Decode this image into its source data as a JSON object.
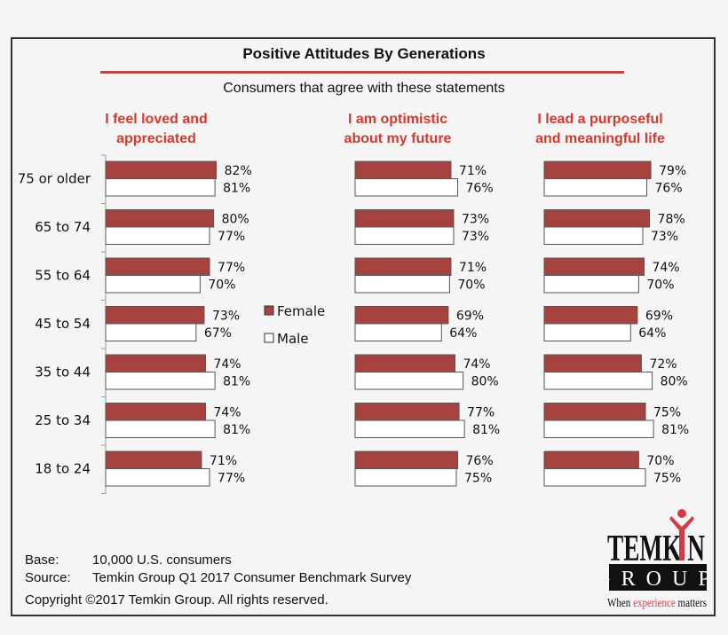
{
  "chart_data": {
    "type": "bar",
    "orientation": "horizontal",
    "title": "Positive Attitudes By Generations",
    "subtitle": "Consumers that agree with these statements",
    "categories": [
      "75 or older",
      "65 to 74",
      "55 to 64",
      "45 to 54",
      "35 to 44",
      "25 to 34",
      "18 to 24"
    ],
    "legend": {
      "position": "center",
      "entries": [
        "Female",
        "Male"
      ]
    },
    "colors": {
      "Female": "#a6433f",
      "Male": "#ffffff",
      "accent": "#d13b2f"
    },
    "xlim": [
      0,
      100
    ],
    "panels": [
      {
        "title": "I feel loved and appreciated",
        "title_lines": [
          "I feel loved and",
          "appreciated"
        ],
        "series": [
          {
            "name": "Female",
            "values": [
              82,
              80,
              77,
              73,
              74,
              74,
              71
            ]
          },
          {
            "name": "Male",
            "values": [
              81,
              77,
              70,
              67,
              81,
              81,
              77
            ]
          }
        ]
      },
      {
        "title": "I am optimistic about my future",
        "title_lines": [
          "I am optimistic",
          "about my future"
        ],
        "series": [
          {
            "name": "Female",
            "values": [
              71,
              73,
              71,
              69,
              74,
              77,
              76
            ]
          },
          {
            "name": "Male",
            "values": [
              76,
              73,
              70,
              64,
              80,
              81,
              75
            ]
          }
        ]
      },
      {
        "title": "I lead a purposeful and meaningful life",
        "title_lines": [
          "I lead a purposeful",
          "and meaningful life"
        ],
        "series": [
          {
            "name": "Female",
            "values": [
              79,
              78,
              74,
              69,
              72,
              75,
              70
            ]
          },
          {
            "name": "Male",
            "values": [
              76,
              73,
              70,
              64,
              80,
              81,
              75
            ]
          }
        ]
      }
    ]
  },
  "footer": {
    "base_label": "Base:",
    "base_value": "10,000 U.S. consumers",
    "source_label": "Source:",
    "source_value": "Temkin Group Q1 2017 Consumer Benchmark Survey",
    "copyright": "Copyright ©2017 Temkin Group. All rights reserved."
  },
  "logo": {
    "line1": "TEMKIN",
    "line2": "GROUP",
    "tagline": "When experience matters"
  }
}
